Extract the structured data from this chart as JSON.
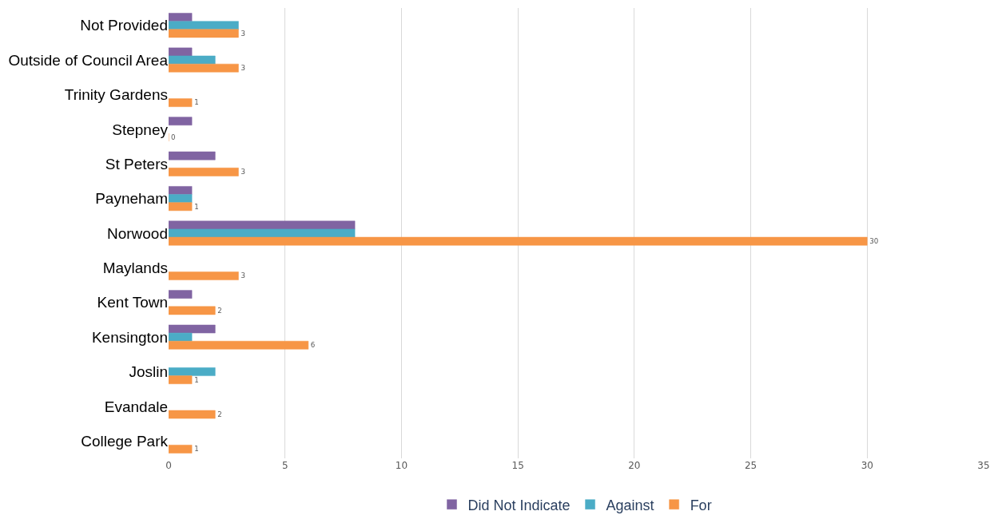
{
  "chart_data": {
    "type": "bar",
    "orientation": "horizontal",
    "categories": [
      "Not Provided",
      "Outside of Council Area",
      "Trinity Gardens",
      "Stepney",
      "St Peters",
      "Payneham",
      "Norwood",
      "Maylands",
      "Kent Town",
      "Kensington",
      "Joslin",
      "Evandale",
      "College Park"
    ],
    "series": [
      {
        "name": "Did Not Indicate",
        "color": "#8064a2",
        "values": [
          1,
          1,
          null,
          1,
          2,
          1,
          8,
          null,
          1,
          2,
          null,
          null,
          null
        ]
      },
      {
        "name": "Against",
        "color": "#4bacc6",
        "values": [
          3,
          2,
          null,
          null,
          null,
          1,
          8,
          null,
          null,
          1,
          2,
          null,
          null
        ]
      },
      {
        "name": "For",
        "color": "#f79646",
        "values": [
          3,
          3,
          1,
          0,
          3,
          1,
          30,
          3,
          2,
          6,
          1,
          2,
          1
        ],
        "value_labels": [
          "3",
          "3",
          "1",
          "0",
          "3",
          "1",
          "30",
          "3",
          "2",
          "6",
          "1",
          "2",
          "1"
        ]
      }
    ],
    "xlim": [
      0,
      35
    ],
    "xticks": [
      0,
      5,
      10,
      15,
      20,
      25,
      30,
      35
    ],
    "grid": "x",
    "legend": "bottom"
  }
}
